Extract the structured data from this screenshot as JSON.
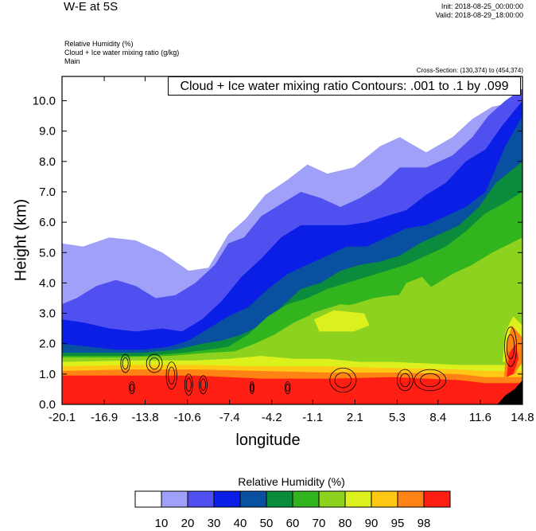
{
  "header": {
    "title": "W-E at 5S",
    "init": "Init: 2018-08-25_00:00:00",
    "valid": "Valid: 2018-08-29_18:00:00",
    "fields": [
      "Relative Humidity   (%)",
      "Cloud + Ice water mixing ratio   (g/kg)",
      "Main"
    ],
    "cross_section": "Cross-Section: (130,374) to (454,374)",
    "contour_label": "Cloud + Ice water mixing ratio Contours: .001 to .1 by .099"
  },
  "chart_data": {
    "type": "heatmap",
    "xlabel": "longitude",
    "ylabel": "Height (km)",
    "x_ticks": [
      "-20.1",
      "-16.9",
      "-13.8",
      "-10.6",
      "-7.4",
      "-4.2",
      "-1.1",
      "2.1",
      "5.3",
      "8.4",
      "11.6",
      "14.8"
    ],
    "y_ticks": [
      "0.0",
      "1.0",
      "2.0",
      "3.0",
      "4.0",
      "5.0",
      "6.0",
      "7.0",
      "8.0",
      "9.0",
      "10.0"
    ],
    "xlim": [
      -20.1,
      14.8
    ],
    "ylim": [
      0.0,
      10.8
    ],
    "colorbar": {
      "title": "Relative Humidity  (%)",
      "labels": [
        "10",
        "20",
        "30",
        "40",
        "50",
        "60",
        "70",
        "80",
        "90",
        "95",
        "98"
      ],
      "colors": [
        "#ffffff",
        "#a0a0f8",
        "#5050f0",
        "#0a1ee6",
        "#0a50a0",
        "#0a8c3c",
        "#32b41e",
        "#8cd21e",
        "#dcf01e",
        "#ffc814",
        "#ff8214",
        "#ff1e14"
      ]
    },
    "rh_boundaries": [
      {
        "level_index": 0,
        "points": [
          [
            -20.1,
            5.3
          ],
          [
            -18.5,
            5.2
          ],
          [
            -16.5,
            5.5
          ],
          [
            -14.5,
            5.4
          ],
          [
            -12.5,
            5.0
          ],
          [
            -10.5,
            4.4
          ],
          [
            -9.0,
            4.5
          ],
          [
            -7.5,
            5.6
          ],
          [
            -6.2,
            6.1
          ],
          [
            -4.7,
            6.9
          ],
          [
            -3.0,
            7.4
          ],
          [
            -1.5,
            7.9
          ],
          [
            0.0,
            7.6
          ],
          [
            2.0,
            7.8
          ],
          [
            4.0,
            8.5
          ],
          [
            5.5,
            8.8
          ],
          [
            7.5,
            8.3
          ],
          [
            9.5,
            8.8
          ],
          [
            11.0,
            9.4
          ],
          [
            12.5,
            9.8
          ],
          [
            14.8,
            10.0
          ]
        ]
      },
      {
        "level_index": 1,
        "points": [
          [
            -20.1,
            3.3
          ],
          [
            -19.0,
            3.5
          ],
          [
            -17.5,
            3.9
          ],
          [
            -16.0,
            4.1
          ],
          [
            -14.5,
            3.9
          ],
          [
            -13.0,
            3.5
          ],
          [
            -11.5,
            3.6
          ],
          [
            -10.0,
            4.0
          ],
          [
            -8.5,
            4.6
          ],
          [
            -7.5,
            5.3
          ],
          [
            -6.3,
            5.5
          ],
          [
            -5.0,
            6.2
          ],
          [
            -3.5,
            6.6
          ],
          [
            -2.0,
            7.0
          ],
          [
            -0.5,
            6.8
          ],
          [
            1.0,
            6.5
          ],
          [
            2.5,
            6.8
          ],
          [
            4.0,
            7.2
          ],
          [
            5.5,
            7.8
          ],
          [
            7.5,
            7.8
          ],
          [
            9.5,
            8.2
          ],
          [
            11.0,
            8.8
          ],
          [
            12.2,
            9.5
          ],
          [
            13.5,
            10.0
          ],
          [
            14.8,
            10.4
          ]
        ]
      },
      {
        "level_index": 2,
        "points": [
          [
            -20.1,
            2.8
          ],
          [
            -18.5,
            2.7
          ],
          [
            -16.5,
            2.5
          ],
          [
            -14.5,
            2.4
          ],
          [
            -12.5,
            2.5
          ],
          [
            -11.0,
            2.4
          ],
          [
            -9.5,
            2.8
          ],
          [
            -8.0,
            3.4
          ],
          [
            -6.5,
            4.2
          ],
          [
            -5.0,
            4.8
          ],
          [
            -3.5,
            5.5
          ],
          [
            -2.0,
            5.9
          ],
          [
            0.0,
            5.9
          ],
          [
            1.5,
            5.9
          ],
          [
            3.0,
            6.0
          ],
          [
            4.5,
            6.2
          ],
          [
            6.0,
            6.4
          ],
          [
            7.5,
            6.9
          ],
          [
            9.0,
            7.3
          ],
          [
            10.5,
            8.0
          ],
          [
            12.0,
            8.4
          ],
          [
            13.3,
            9.2
          ],
          [
            14.8,
            10.0
          ]
        ]
      },
      {
        "level_index": 3,
        "points": [
          [
            -20.1,
            2.0
          ],
          [
            -18.0,
            1.9
          ],
          [
            -16.0,
            1.8
          ],
          [
            -14.0,
            1.8
          ],
          [
            -12.0,
            1.9
          ],
          [
            -10.5,
            2.1
          ],
          [
            -9.0,
            2.5
          ],
          [
            -7.5,
            2.9
          ],
          [
            -6.0,
            3.2
          ],
          [
            -4.5,
            3.8
          ],
          [
            -3.0,
            4.3
          ],
          [
            -1.5,
            4.6
          ],
          [
            0.0,
            4.9
          ],
          [
            1.5,
            5.2
          ],
          [
            3.0,
            5.2
          ],
          [
            4.5,
            5.5
          ],
          [
            6.0,
            5.8
          ],
          [
            7.5,
            5.9
          ],
          [
            9.0,
            6.2
          ],
          [
            10.5,
            6.5
          ],
          [
            12.0,
            7.0
          ],
          [
            13.5,
            8.5
          ],
          [
            14.8,
            9.5
          ]
        ]
      },
      {
        "level_index": 4,
        "points": [
          [
            -20.1,
            1.7
          ],
          [
            -17.0,
            1.7
          ],
          [
            -14.0,
            1.7
          ],
          [
            -11.5,
            1.8
          ],
          [
            -9.5,
            2.0
          ],
          [
            -8.0,
            2.1
          ],
          [
            -6.5,
            2.3
          ],
          [
            -5.0,
            2.6
          ],
          [
            -3.5,
            3.2
          ],
          [
            -2.0,
            3.8
          ],
          [
            -0.5,
            4.0
          ],
          [
            1.0,
            4.4
          ],
          [
            2.5,
            4.6
          ],
          [
            4.0,
            4.7
          ],
          [
            5.5,
            4.9
          ],
          [
            7.0,
            5.3
          ],
          [
            8.5,
            5.6
          ],
          [
            10.0,
            5.9
          ],
          [
            11.5,
            6.5
          ],
          [
            12.8,
            7.3
          ],
          [
            14.8,
            8.0
          ]
        ]
      },
      {
        "level_index": 5,
        "points": [
          [
            -20.1,
            1.6
          ],
          [
            -17.0,
            1.6
          ],
          [
            -14.0,
            1.6
          ],
          [
            -11.0,
            1.7
          ],
          [
            -9.0,
            1.8
          ],
          [
            -7.5,
            1.9
          ],
          [
            -6.0,
            2.3
          ],
          [
            -4.5,
            2.9
          ],
          [
            -3.0,
            3.3
          ],
          [
            -1.5,
            3.5
          ],
          [
            0.0,
            3.8
          ],
          [
            1.5,
            4.0
          ],
          [
            3.0,
            4.2
          ],
          [
            4.5,
            4.4
          ],
          [
            6.0,
            4.6
          ],
          [
            7.5,
            4.9
          ],
          [
            9.0,
            5.2
          ],
          [
            10.5,
            5.7
          ],
          [
            12.0,
            6.3
          ],
          [
            13.3,
            6.6
          ],
          [
            14.8,
            7.0
          ]
        ]
      },
      {
        "level_index": 6,
        "points": [
          [
            -20.1,
            1.55
          ],
          [
            -16.0,
            1.55
          ],
          [
            -12.0,
            1.6
          ],
          [
            -9.0,
            1.7
          ],
          [
            -7.0,
            1.75
          ],
          [
            -5.5,
            2.0
          ],
          [
            -4.0,
            2.3
          ],
          [
            -2.5,
            2.7
          ],
          [
            -1.0,
            3.0
          ],
          [
            0.5,
            3.2
          ],
          [
            2.0,
            3.3
          ],
          [
            3.5,
            3.5
          ],
          [
            5.0,
            3.6
          ],
          [
            6.5,
            3.6
          ],
          [
            8.0,
            3.9
          ],
          [
            9.5,
            4.3
          ],
          [
            11.0,
            4.6
          ],
          [
            12.5,
            5.0
          ],
          [
            14.8,
            5.5
          ]
        ]
      },
      {
        "level_index": 7,
        "points": [
          [
            -20.1,
            1.4
          ],
          [
            -15.0,
            1.45
          ],
          [
            -10.0,
            1.45
          ],
          [
            -7.5,
            1.5
          ],
          [
            -5.0,
            1.6
          ],
          [
            -2.5,
            1.5
          ],
          [
            0.0,
            1.5
          ],
          [
            2.5,
            1.4
          ],
          [
            5.0,
            1.4
          ],
          [
            7.5,
            1.35
          ],
          [
            10.0,
            1.3
          ],
          [
            12.0,
            1.3
          ],
          [
            14.8,
            1.3
          ]
        ]
      },
      {
        "level_index": 8,
        "points": [
          [
            -20.1,
            1.25
          ],
          [
            -15.0,
            1.3
          ],
          [
            -10.0,
            1.3
          ],
          [
            -5.0,
            1.25
          ],
          [
            0.0,
            1.25
          ],
          [
            5.0,
            1.2
          ],
          [
            10.0,
            1.15
          ],
          [
            12.0,
            1.1
          ],
          [
            14.8,
            1.1
          ]
        ]
      },
      {
        "level_index": 9,
        "points": [
          [
            -20.1,
            1.1
          ],
          [
            -15.0,
            1.15
          ],
          [
            -10.0,
            1.15
          ],
          [
            -5.0,
            1.1
          ],
          [
            0.0,
            1.05
          ],
          [
            5.0,
            1.05
          ],
          [
            10.0,
            1.0
          ],
          [
            12.0,
            0.9
          ],
          [
            14.8,
            0.9
          ]
        ]
      },
      {
        "level_index": 10,
        "points": [
          [
            -20.1,
            0.95
          ],
          [
            -15.0,
            0.95
          ],
          [
            -10.0,
            0.95
          ],
          [
            -5.0,
            0.85
          ],
          [
            0.0,
            0.85
          ],
          [
            5.0,
            0.9
          ],
          [
            10.0,
            0.8
          ],
          [
            12.0,
            0.7
          ],
          [
            14.8,
            0.7
          ]
        ]
      },
      {
        "level_index": 11,
        "points": [
          [
            -20.1,
            0.75
          ],
          [
            -15.0,
            0.75
          ],
          [
            -10.0,
            0.7
          ],
          [
            -5.0,
            0.6
          ],
          [
            0.0,
            0.7
          ],
          [
            5.0,
            0.75
          ],
          [
            10.0,
            0.6
          ],
          [
            12.0,
            0.5
          ],
          [
            14.8,
            0.5
          ]
        ]
      }
    ],
    "inner_patches": [
      {
        "level_index": 6,
        "points": [
          [
            -1.0,
            2.3
          ],
          [
            2.0,
            2.3
          ],
          [
            3.5,
            2.5
          ],
          [
            4.5,
            2.9
          ],
          [
            3.5,
            3.2
          ],
          [
            1.0,
            3.3
          ],
          [
            -1.2,
            3.0
          ],
          [
            -1.6,
            2.6
          ]
        ]
      },
      {
        "level_index": 7,
        "points": [
          [
            -0.6,
            2.4
          ],
          [
            2.0,
            2.4
          ],
          [
            3.2,
            2.6
          ],
          [
            2.8,
            3.0
          ],
          [
            0.5,
            3.1
          ],
          [
            -1.0,
            2.8
          ]
        ]
      },
      {
        "level_index": 6,
        "points": [
          [
            2.0,
            1.6
          ],
          [
            4.0,
            1.7
          ],
          [
            6.0,
            1.7
          ],
          [
            8.0,
            1.8
          ],
          [
            8.5,
            2.1
          ],
          [
            6.0,
            2.2
          ],
          [
            3.5,
            2.1
          ],
          [
            2.0,
            1.9
          ]
        ]
      },
      {
        "level_index": 6,
        "points": [
          [
            5.5,
            3.0
          ],
          [
            7.0,
            3.3
          ],
          [
            8.0,
            3.8
          ],
          [
            7.2,
            4.2
          ],
          [
            6.0,
            4.0
          ],
          [
            5.3,
            3.5
          ]
        ]
      },
      {
        "level_index": 6,
        "points": [
          [
            10.5,
            2.5
          ],
          [
            11.5,
            3.0
          ],
          [
            11.8,
            3.8
          ],
          [
            11.2,
            4.3
          ],
          [
            10.3,
            3.8
          ],
          [
            10.2,
            3.0
          ]
        ]
      },
      {
        "level_index": 7,
        "points": [
          [
            13.3,
            1.4
          ],
          [
            14.2,
            1.4
          ],
          [
            14.8,
            1.8
          ],
          [
            14.8,
            2.6
          ],
          [
            14.1,
            2.9
          ],
          [
            13.5,
            2.4
          ]
        ]
      },
      {
        "level_index": 9,
        "points": [
          [
            13.4,
            0.9
          ],
          [
            14.2,
            1.0
          ],
          [
            14.8,
            1.4
          ],
          [
            14.8,
            2.2
          ],
          [
            14.0,
            2.6
          ],
          [
            13.6,
            2.0
          ]
        ]
      },
      {
        "level_index": 11,
        "points": [
          [
            13.6,
            0.9
          ],
          [
            14.1,
            1.0
          ],
          [
            14.5,
            1.5
          ],
          [
            14.3,
            2.0
          ],
          [
            13.8,
            1.7
          ]
        ]
      }
    ],
    "cloud_contours": [
      {
        "x": -15.3,
        "y": 1.35,
        "rx": 0.35,
        "ry": 0.3
      },
      {
        "x": -13.1,
        "y": 1.35,
        "rx": 0.6,
        "ry": 0.3
      },
      {
        "x": -11.8,
        "y": 0.95,
        "rx": 0.4,
        "ry": 0.45
      },
      {
        "x": -10.5,
        "y": 0.65,
        "rx": 0.3,
        "ry": 0.35
      },
      {
        "x": -9.4,
        "y": 0.65,
        "rx": 0.3,
        "ry": 0.3
      },
      {
        "x": 1.2,
        "y": 0.8,
        "rx": 1.0,
        "ry": 0.4
      },
      {
        "x": 5.9,
        "y": 0.8,
        "rx": 0.6,
        "ry": 0.35
      },
      {
        "x": 7.8,
        "y": 0.8,
        "rx": 1.2,
        "ry": 0.35
      },
      {
        "x": 13.9,
        "y": 1.9,
        "rx": 0.45,
        "ry": 0.65
      },
      {
        "x": -14.8,
        "y": 0.55,
        "rx": 0.2,
        "ry": 0.2
      },
      {
        "x": -3.0,
        "y": 0.55,
        "rx": 0.2,
        "ry": 0.2
      },
      {
        "x": -5.7,
        "y": 0.55,
        "rx": 0.15,
        "ry": 0.2
      }
    ],
    "terrain": [
      [
        12.9,
        0.0
      ],
      [
        13.5,
        0.3
      ],
      [
        14.2,
        0.5
      ],
      [
        14.8,
        0.8
      ],
      [
        14.8,
        0.0
      ]
    ]
  }
}
